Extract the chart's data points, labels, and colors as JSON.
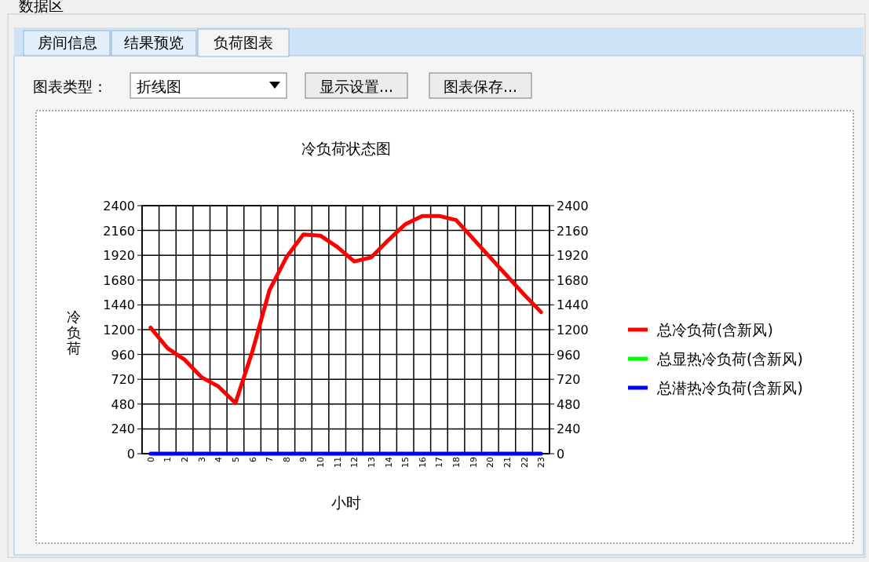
{
  "chart_data": {
    "type": "line",
    "title": "冷负荷状态图",
    "xlabel": "小时",
    "ylabel": "冷负荷",
    "categories": [
      "0",
      "1",
      "2",
      "3",
      "4",
      "5",
      "6",
      "7",
      "8",
      "9",
      "10",
      "11",
      "12",
      "13",
      "14",
      "15",
      "16",
      "17",
      "18",
      "19",
      "20",
      "21",
      "22",
      "23"
    ],
    "series": [
      {
        "name": "总冷负荷(含新风)",
        "color": "#ff0000",
        "values": [
          1220,
          1020,
          910,
          740,
          650,
          490,
          990,
          1580,
          1900,
          2120,
          2110,
          2000,
          1860,
          1900,
          2065,
          2220,
          2300,
          2300,
          2260,
          2080,
          1900,
          1720,
          1540,
          1370
        ]
      },
      {
        "name": "总显热冷负荷(含新风)",
        "color": "#00ff00",
        "values": [
          null,
          null,
          null,
          null,
          null,
          null,
          null,
          null,
          null,
          null,
          null,
          null,
          null,
          null,
          null,
          null,
          null,
          null,
          null,
          null,
          null,
          null,
          null,
          null
        ]
      },
      {
        "name": "总潜热冷负荷(含新风)",
        "color": "#0000ff",
        "values": [
          0,
          0,
          0,
          0,
          0,
          0,
          0,
          0,
          0,
          0,
          0,
          0,
          0,
          0,
          0,
          0,
          0,
          0,
          0,
          0,
          0,
          0,
          0,
          0
        ]
      }
    ],
    "ylim": [
      0,
      2400
    ],
    "yticks": [
      0,
      240,
      480,
      720,
      960,
      1200,
      1440,
      1680,
      1920,
      2160,
      2400
    ],
    "y2lim": [
      0,
      2400
    ],
    "y2ticks": [
      0,
      240,
      480,
      720,
      960,
      1200,
      1440,
      1680,
      1920,
      2160,
      2400
    ],
    "grid": true,
    "legend": "right",
    "marker": "none",
    "line_style": "solid",
    "annotations": [
      "数据区",
      "房间信息",
      "结果预览",
      "负荷图表",
      "图表类型：",
      "折线图",
      "显示设置...",
      "图表保存..."
    ]
  }
}
